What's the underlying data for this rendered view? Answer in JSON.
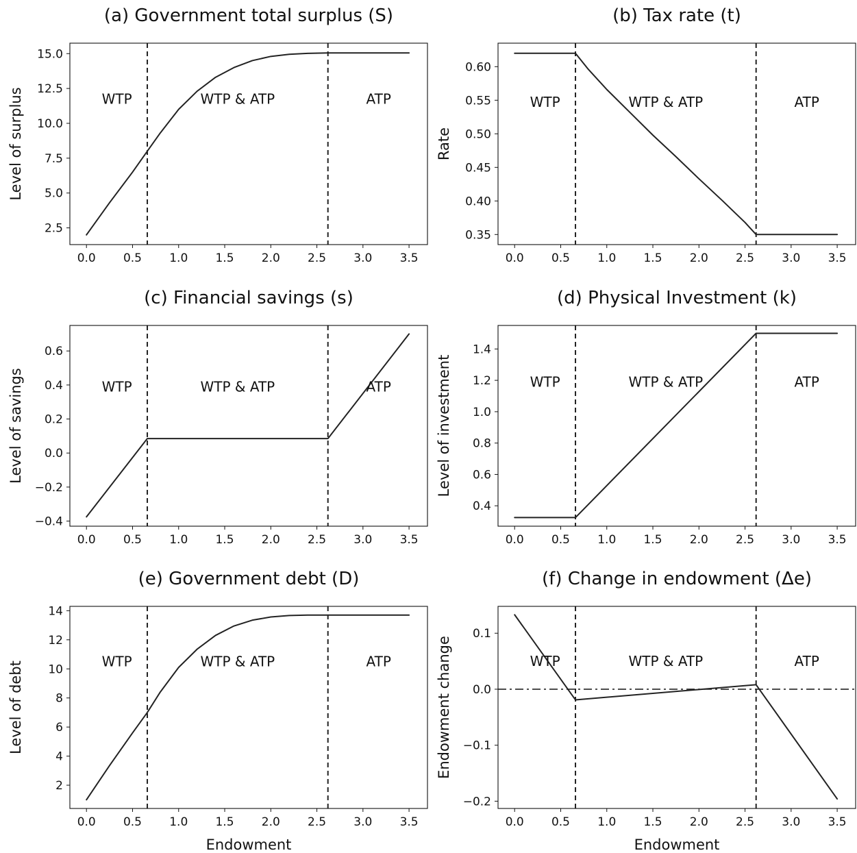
{
  "chart_data": [
    {
      "type": "line",
      "title": "(a) Government total surplus (S)",
      "xlabel": "",
      "ylabel": "Level of surplus",
      "xlim": [
        -0.18,
        3.7
      ],
      "ylim": [
        1.3,
        15.75
      ],
      "xticks": [
        "0.0",
        "0.5",
        "1.0",
        "1.5",
        "2.0",
        "2.5",
        "3.0",
        "3.5"
      ],
      "yticks": [
        "2.5",
        "5.0",
        "7.5",
        "10.0",
        "12.5",
        "15.0"
      ],
      "boundaries": [
        0.66,
        2.62
      ],
      "regions": [
        {
          "label": "WTP",
          "x": 0.33,
          "y": 11.75
        },
        {
          "label": "WTP & ATP",
          "x": 1.64,
          "y": 11.75
        },
        {
          "label": "ATP",
          "x": 3.17,
          "y": 11.75
        }
      ],
      "series": [
        {
          "x": [
            0,
            0.25,
            0.5,
            0.66,
            0.8,
            1.0,
            1.2,
            1.4,
            1.6,
            1.8,
            2.0,
            2.2,
            2.4,
            2.62,
            3.0,
            3.5
          ],
          "y": [
            2.0,
            4.3,
            6.5,
            8.0,
            9.3,
            11.0,
            12.3,
            13.3,
            14.0,
            14.5,
            14.8,
            14.95,
            15.02,
            15.05,
            15.05,
            15.05
          ]
        }
      ]
    },
    {
      "type": "line",
      "title": "(b) Tax rate (t)",
      "xlabel": "",
      "ylabel": "Rate",
      "xlim": [
        -0.18,
        3.7
      ],
      "ylim": [
        0.335,
        0.635
      ],
      "xticks": [
        "0.0",
        "0.5",
        "1.0",
        "1.5",
        "2.0",
        "2.5",
        "3.0",
        "3.5"
      ],
      "yticks": [
        "0.35",
        "0.40",
        "0.45",
        "0.50",
        "0.55",
        "0.60"
      ],
      "boundaries": [
        0.66,
        2.62
      ],
      "regions": [
        {
          "label": "WTP",
          "x": 0.33,
          "y": 0.547
        },
        {
          "label": "WTP & ATP",
          "x": 1.64,
          "y": 0.547
        },
        {
          "label": "ATP",
          "x": 3.17,
          "y": 0.547
        }
      ],
      "series": [
        {
          "x": [
            0,
            0.66,
            0.8,
            1.0,
            1.25,
            1.5,
            1.75,
            2.0,
            2.25,
            2.5,
            2.62,
            3.0,
            3.5
          ],
          "y": [
            0.62,
            0.62,
            0.596,
            0.566,
            0.532,
            0.498,
            0.466,
            0.433,
            0.401,
            0.368,
            0.35,
            0.35,
            0.35
          ]
        }
      ]
    },
    {
      "type": "line",
      "title": "(c) Financial savings (s)",
      "xlabel": "",
      "ylabel": "Level of savings",
      "xlim": [
        -0.18,
        3.7
      ],
      "ylim": [
        -0.43,
        0.75
      ],
      "xticks": [
        "0.0",
        "0.5",
        "1.0",
        "1.5",
        "2.0",
        "2.5",
        "3.0",
        "3.5"
      ],
      "yticks": [
        "−0.4",
        "−0.2",
        "0.0",
        "0.2",
        "0.4",
        "0.6"
      ],
      "boundaries": [
        0.66,
        2.62
      ],
      "regions": [
        {
          "label": "WTP",
          "x": 0.33,
          "y": 0.39
        },
        {
          "label": "WTP & ATP",
          "x": 1.64,
          "y": 0.39
        },
        {
          "label": "ATP",
          "x": 3.17,
          "y": 0.39
        }
      ],
      "series": [
        {
          "x": [
            0,
            0.66,
            2.62,
            3.5
          ],
          "y": [
            -0.375,
            0.085,
            0.085,
            0.7
          ]
        }
      ]
    },
    {
      "type": "line",
      "title": "(d) Physical Investment (k)",
      "xlabel": "",
      "ylabel": "Level of investment",
      "xlim": [
        -0.18,
        3.7
      ],
      "ylim": [
        0.27,
        1.55
      ],
      "xticks": [
        "0.0",
        "0.5",
        "1.0",
        "1.5",
        "2.0",
        "2.5",
        "3.0",
        "3.5"
      ],
      "yticks": [
        "0.4",
        "0.6",
        "0.8",
        "1.0",
        "1.2",
        "1.4"
      ],
      "boundaries": [
        0.66,
        2.62
      ],
      "regions": [
        {
          "label": "WTP",
          "x": 0.33,
          "y": 1.19
        },
        {
          "label": "WTP & ATP",
          "x": 1.64,
          "y": 1.19
        },
        {
          "label": "ATP",
          "x": 3.17,
          "y": 1.19
        }
      ],
      "series": [
        {
          "x": [
            0,
            0.66,
            2.62,
            3.5
          ],
          "y": [
            0.325,
            0.325,
            1.5,
            1.5
          ]
        }
      ]
    },
    {
      "type": "line",
      "title": "(e) Government debt (D)",
      "xlabel": "Endowment",
      "ylabel": "Level of debt",
      "xlim": [
        -0.18,
        3.7
      ],
      "ylim": [
        0.4,
        14.3
      ],
      "xticks": [
        "0.0",
        "0.5",
        "1.0",
        "1.5",
        "2.0",
        "2.5",
        "3.0",
        "3.5"
      ],
      "yticks": [
        "2",
        "4",
        "6",
        "8",
        "10",
        "12",
        "14"
      ],
      "boundaries": [
        0.66,
        2.62
      ],
      "regions": [
        {
          "label": "WTP",
          "x": 0.33,
          "y": 10.5
        },
        {
          "label": "WTP & ATP",
          "x": 1.64,
          "y": 10.5
        },
        {
          "label": "ATP",
          "x": 3.17,
          "y": 10.5
        }
      ],
      "series": [
        {
          "x": [
            0,
            0.25,
            0.5,
            0.66,
            0.8,
            1.0,
            1.2,
            1.4,
            1.6,
            1.8,
            2.0,
            2.2,
            2.4,
            2.62,
            3.0,
            3.5
          ],
          "y": [
            1.0,
            3.35,
            5.6,
            7.0,
            8.4,
            10.1,
            11.35,
            12.3,
            12.95,
            13.35,
            13.57,
            13.67,
            13.7,
            13.7,
            13.7,
            13.7
          ]
        }
      ]
    },
    {
      "type": "line",
      "title": "(f) Change in endowment (Δe)",
      "xlabel": "Endowment",
      "ylabel": "Endowment change",
      "xlim": [
        -0.18,
        3.7
      ],
      "ylim": [
        -0.213,
        0.148
      ],
      "xticks": [
        "0.0",
        "0.5",
        "1.0",
        "1.5",
        "2.0",
        "2.5",
        "3.0",
        "3.5"
      ],
      "yticks": [
        "−0.2",
        "−0.1",
        "0.0",
        "0.1"
      ],
      "boundaries": [
        0.66,
        2.62
      ],
      "reference_y": 0,
      "regions": [
        {
          "label": "WTP",
          "x": 0.33,
          "y": 0.05
        },
        {
          "label": "WTP & ATP",
          "x": 1.64,
          "y": 0.05
        },
        {
          "label": "ATP",
          "x": 3.17,
          "y": 0.05
        }
      ],
      "series": [
        {
          "x": [
            0,
            0.66,
            2.62,
            3.5
          ],
          "y": [
            0.133,
            -0.019,
            0.008,
            -0.196
          ]
        }
      ]
    }
  ]
}
